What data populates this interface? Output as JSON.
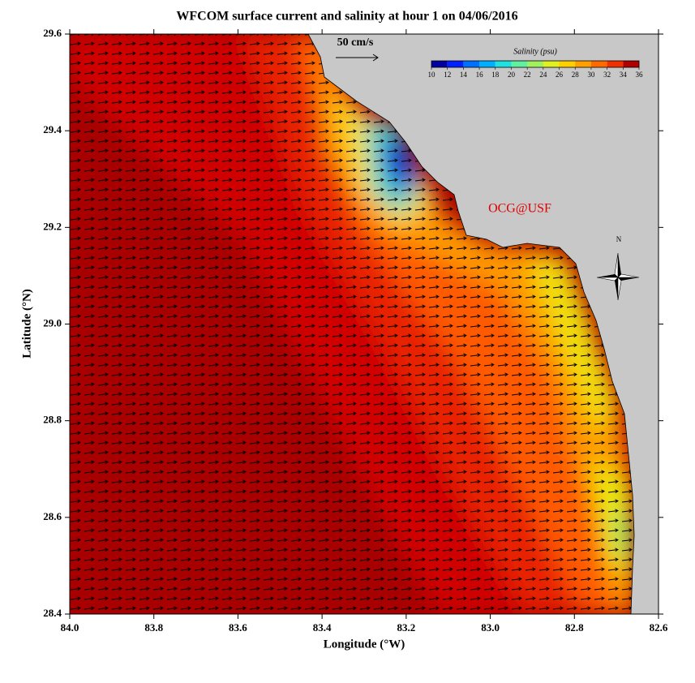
{
  "title": "WFCOM surface current and salinity at hour 1 on 04/06/2016",
  "map": {
    "xlabel": "Longitude (°W)",
    "ylabel": "Latitude (°N)",
    "xlim": [
      84,
      82.6
    ],
    "ylim": [
      28.4,
      29.6
    ],
    "xticks": [
      {
        "value": 84,
        "label": "84.0"
      },
      83.8,
      83.6,
      83.4,
      83.2,
      {
        "value": 83,
        "label": "83.0"
      },
      82.8,
      82.6
    ],
    "yticks": [
      28.4,
      28.6,
      28.8,
      {
        "value": 29,
        "label": "29.0"
      },
      29.2,
      29.4,
      29.6
    ]
  },
  "scale_label": "50 cm/s",
  "credit": "OCG@USF",
  "compass": "N",
  "colorbar": {
    "title": "Salinity (psu)",
    "lim": [
      10,
      36
    ],
    "ticks": [
      10,
      12,
      14,
      16,
      18,
      20,
      22,
      24,
      26,
      28,
      30,
      32,
      34,
      36
    ],
    "colors": [
      "#0000a0",
      "#0020ff",
      "#0070ff",
      "#00b0ff",
      "#20e0e0",
      "#60f0a0",
      "#a0f060",
      "#e0f020",
      "#ffd000",
      "#ffa000",
      "#ff6a00",
      "#f03000",
      "#b00000"
    ]
  }
}
